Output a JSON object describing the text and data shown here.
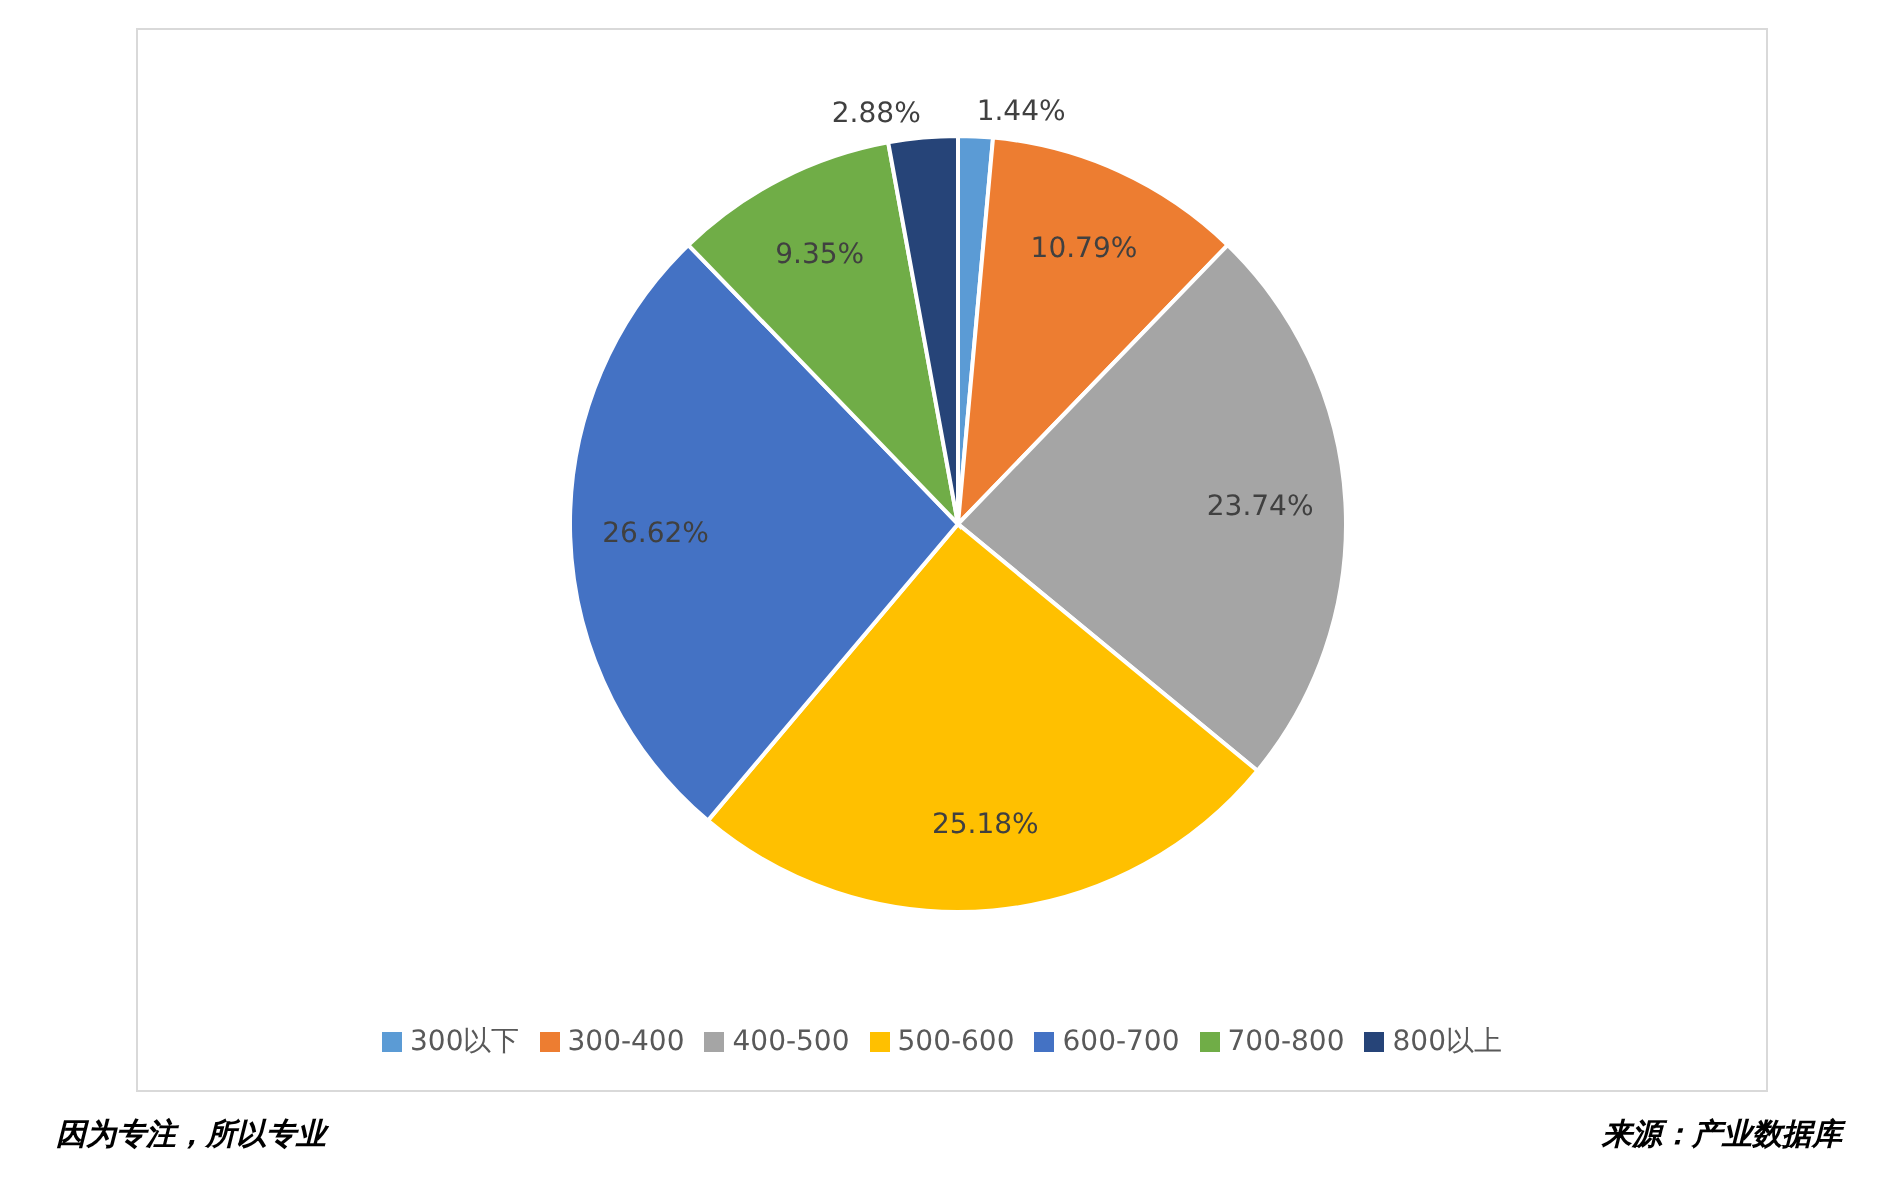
{
  "chart_data": {
    "type": "pie",
    "categories": [
      "300以下",
      "300-400",
      "400-500",
      "500-600",
      "600-700",
      "700-800",
      "800以上"
    ],
    "values": [
      1.44,
      10.79,
      23.74,
      25.18,
      26.62,
      9.35,
      2.88
    ],
    "colors": [
      "#5b9bd5",
      "#ed7d31",
      "#a5a5a5",
      "#ffc000",
      "#4472c4",
      "#70ad47",
      "#264478"
    ],
    "value_labels": [
      "1.44%",
      "10.79%",
      "23.74%",
      "25.18%",
      "26.62%",
      "9.35%",
      "2.88%"
    ],
    "legend": "bottom",
    "annotations": [
      "因为专注，所以专业",
      "来源：产业数据库"
    ]
  }
}
